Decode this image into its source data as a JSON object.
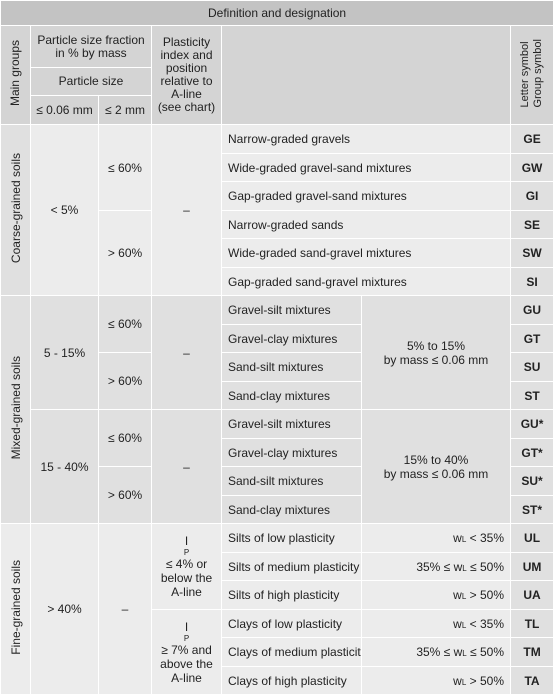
{
  "title": "Definition and designation",
  "headers": {
    "main_groups": "Main groups",
    "fraction": "Particle size fraction in % by mass",
    "particle_size": "Particle size",
    "le006": "≤ 0.06 mm",
    "le2": "≤ 2 mm",
    "plasticity": [
      "Plasticity",
      "index and",
      "position",
      "relative to",
      "A-line",
      "(see chart)"
    ],
    "symbol": [
      "Letter symbol",
      "Group symbol"
    ]
  },
  "groups": {
    "coarse": "Coarse-grained soils",
    "mixed": "Mixed-grained soils",
    "fine": "Fine-grained soils"
  },
  "fractions": {
    "lt5": "< 5%",
    "f5_15": "5 - 15%",
    "f15_40": "15 - 40%",
    "gt40": "> 40%",
    "le60": "≤ 60%",
    "gt60": "> 60%",
    "dash": "–"
  },
  "coarse_rows": [
    {
      "name": "Narrow-graded gravels",
      "sym": "GE"
    },
    {
      "name": "Wide-graded gravel-sand mixtures",
      "sym": "GW"
    },
    {
      "name": "Gap-graded gravel-sand mixtures",
      "sym": "GI"
    },
    {
      "name": "Narrow-graded sands",
      "sym": "SE"
    },
    {
      "name": "Wide-graded sand-gravel mixtures",
      "sym": "SW"
    },
    {
      "name": "Gap-graded sand-gravel mixtures",
      "sym": "SI"
    }
  ],
  "mixed_a_rows": [
    {
      "name": "Gravel-silt mixtures",
      "sym": "GU"
    },
    {
      "name": "Gravel-clay mixtures",
      "sym": "GT"
    },
    {
      "name": "Sand-silt mixtures",
      "sym": "SU"
    },
    {
      "name": "Sand-clay mixtures",
      "sym": "ST"
    }
  ],
  "mixed_a_note": [
    "5% to 15%",
    "by mass ≤ 0.06 mm"
  ],
  "mixed_b_rows": [
    {
      "name": "Gravel-silt mixtures",
      "sym": "GU*"
    },
    {
      "name": "Gravel-clay mixtures",
      "sym": "GT*"
    },
    {
      "name": "Sand-silt mixtures",
      "sym": "SU*"
    },
    {
      "name": "Sand-clay mixtures",
      "sym": "ST*"
    }
  ],
  "mixed_b_note": [
    "15% to 40%",
    "by mass ≤ 0.06 mm"
  ],
  "silt_plast": [
    "≤ 4% or",
    "below the",
    "A-line"
  ],
  "clay_plast": [
    "≥ 7% and",
    "above the",
    "A-line"
  ],
  "plast_sym": "I",
  "plast_sub": "P",
  "wl_sym": "w",
  "wl_sub": "L",
  "silt_rows": [
    {
      "name": "Silts of low plasticity",
      "pre": "",
      "post": " < 35%",
      "sym": "UL"
    },
    {
      "name": "Silts of medium plasticity",
      "pre": "35% ≤ ",
      "post": " ≤ 50%",
      "sym": "UM"
    },
    {
      "name": "Silts of high plasticity",
      "pre": "",
      "post": " > 50%",
      "sym": "UA"
    }
  ],
  "clay_rows": [
    {
      "name": "Clays of low plasticity",
      "pre": "",
      "post": " < 35%",
      "sym": "TL"
    },
    {
      "name": "Clays of medium plasticity",
      "pre": "35% ≤ ",
      "post": " ≤ 50%",
      "sym": "TM"
    },
    {
      "name": "Clays of high plasticity",
      "pre": "",
      "post": " > 50%",
      "sym": "TA"
    }
  ]
}
